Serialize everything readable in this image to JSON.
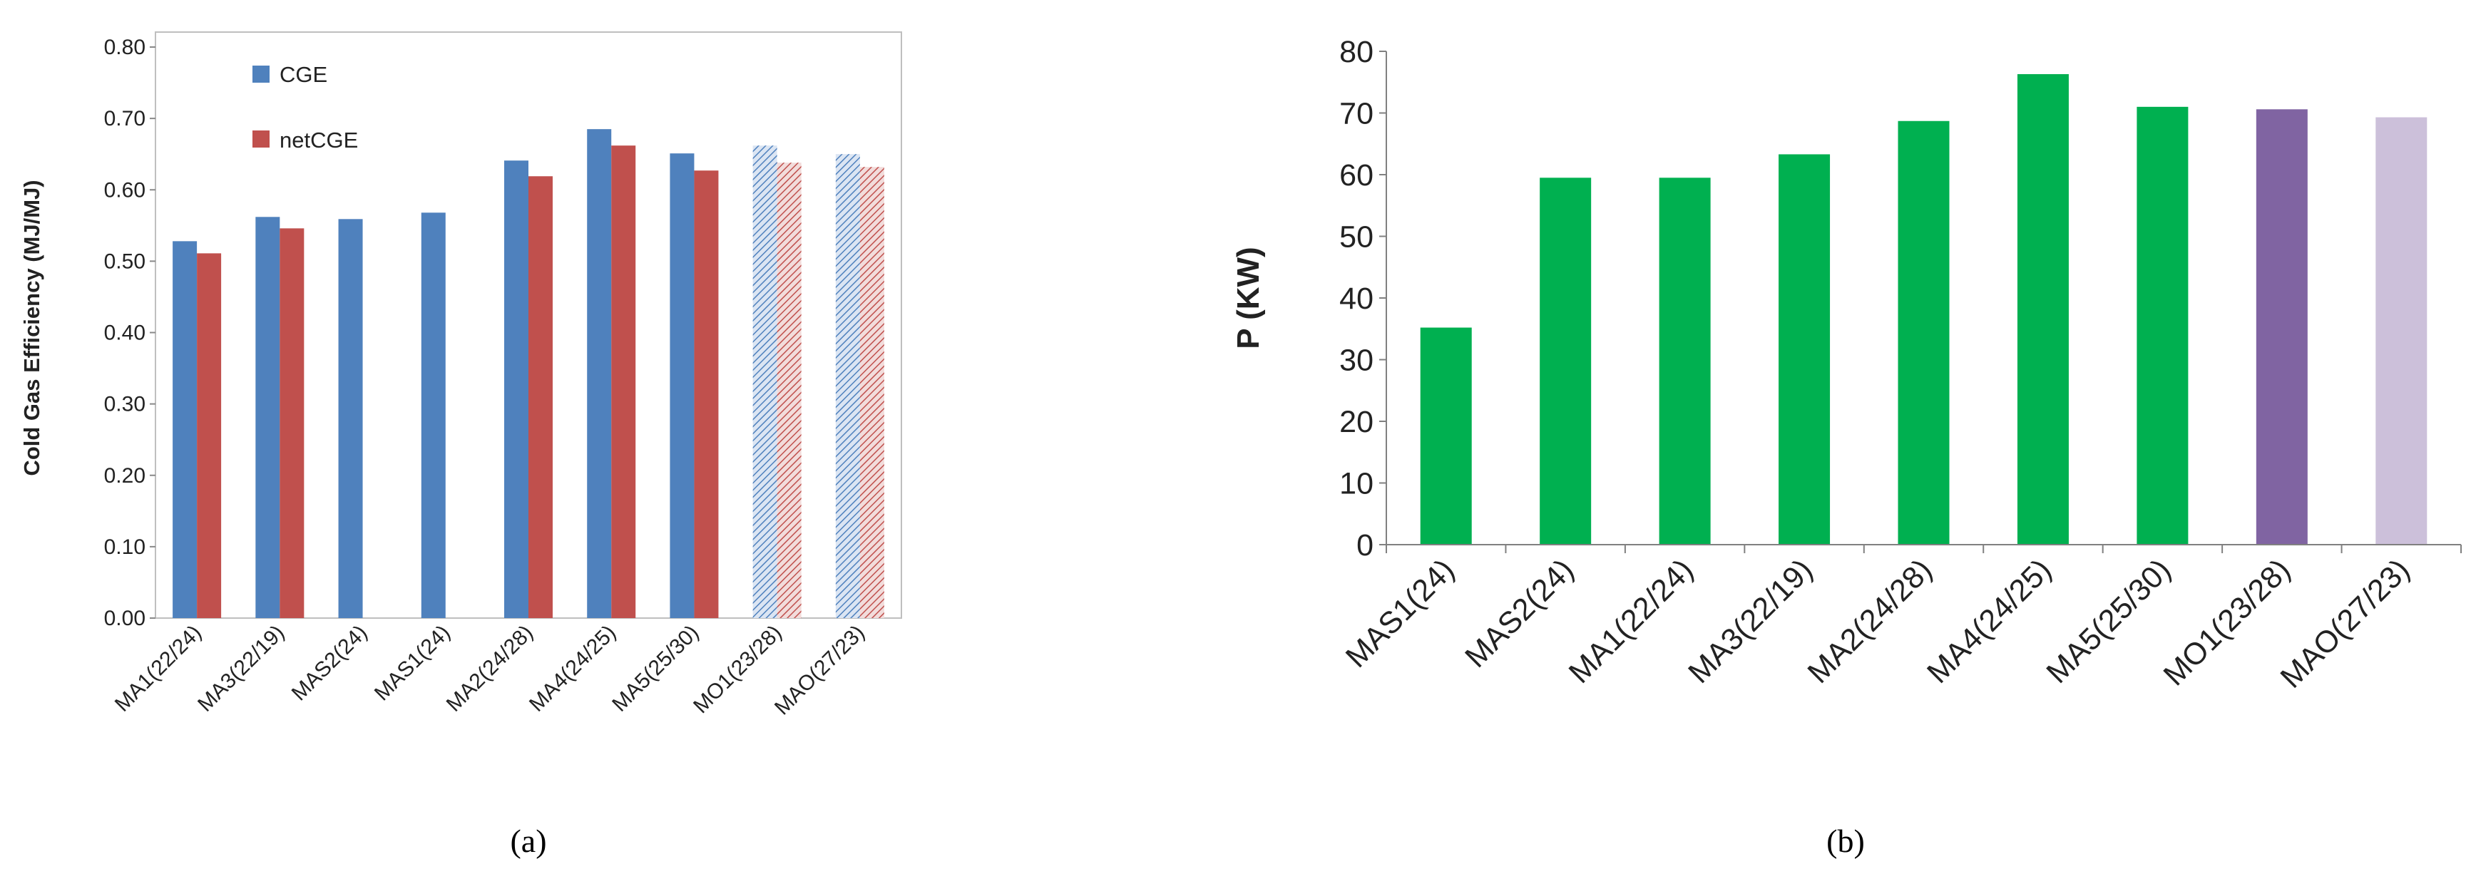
{
  "chart_data": [
    {
      "panel": "a",
      "type": "bar",
      "caption": "(a)",
      "ylabel": "Cold Gas Efficiency (MJ/MJ)",
      "xlabel": "",
      "ylim": [
        0,
        0.8
      ],
      "y_ticks": [
        "0.00",
        "0.10",
        "0.20",
        "0.30",
        "0.40",
        "0.50",
        "0.60",
        "0.70",
        "0.80"
      ],
      "grid": false,
      "legend_position": "top-left",
      "categories": [
        "MA1(22/24)",
        "MA3(22/19)",
        "MAS2(24)",
        "MAS1(24)",
        "MA2(24/28)",
        "MA4(24/25)",
        "MA5(25/30)",
        "MO1(23/28)",
        "MAO(27/23)"
      ],
      "hatched_categories": [
        "MO1(23/28)",
        "MAO(27/23)"
      ],
      "series": [
        {
          "name": "CGE",
          "color": "#4F81BD",
          "values": [
            0.528,
            0.562,
            0.559,
            0.568,
            0.641,
            0.685,
            0.651,
            0.662,
            0.65
          ]
        },
        {
          "name": "netCGE",
          "color": "#C0504D",
          "values": [
            0.511,
            0.546,
            null,
            null,
            0.619,
            0.662,
            0.627,
            0.638,
            0.632
          ]
        }
      ]
    },
    {
      "panel": "b",
      "type": "bar",
      "caption": "(b)",
      "ylabel": "P (KW)",
      "xlabel": "",
      "ylim": [
        0,
        80
      ],
      "y_ticks": [
        "0",
        "10",
        "20",
        "30",
        "40",
        "50",
        "60",
        "70",
        "80"
      ],
      "grid": false,
      "categories": [
        "MAS1(24)",
        "MAS2(24)",
        "MA1(22/24)",
        "MA3(22/19)",
        "MA2(24/28)",
        "MA4(24/25)",
        "MA5(25/30)",
        "MO1(23/28)",
        "MAO(27/23)"
      ],
      "values": [
        35.2,
        59.5,
        59.5,
        63.3,
        68.7,
        76.3,
        71.0,
        70.6,
        69.3
      ],
      "bar_colors": [
        "#00B050",
        "#00B050",
        "#00B050",
        "#00B050",
        "#00B050",
        "#00B050",
        "#00B050",
        "#8064A2",
        "#CCC0DA"
      ]
    }
  ]
}
